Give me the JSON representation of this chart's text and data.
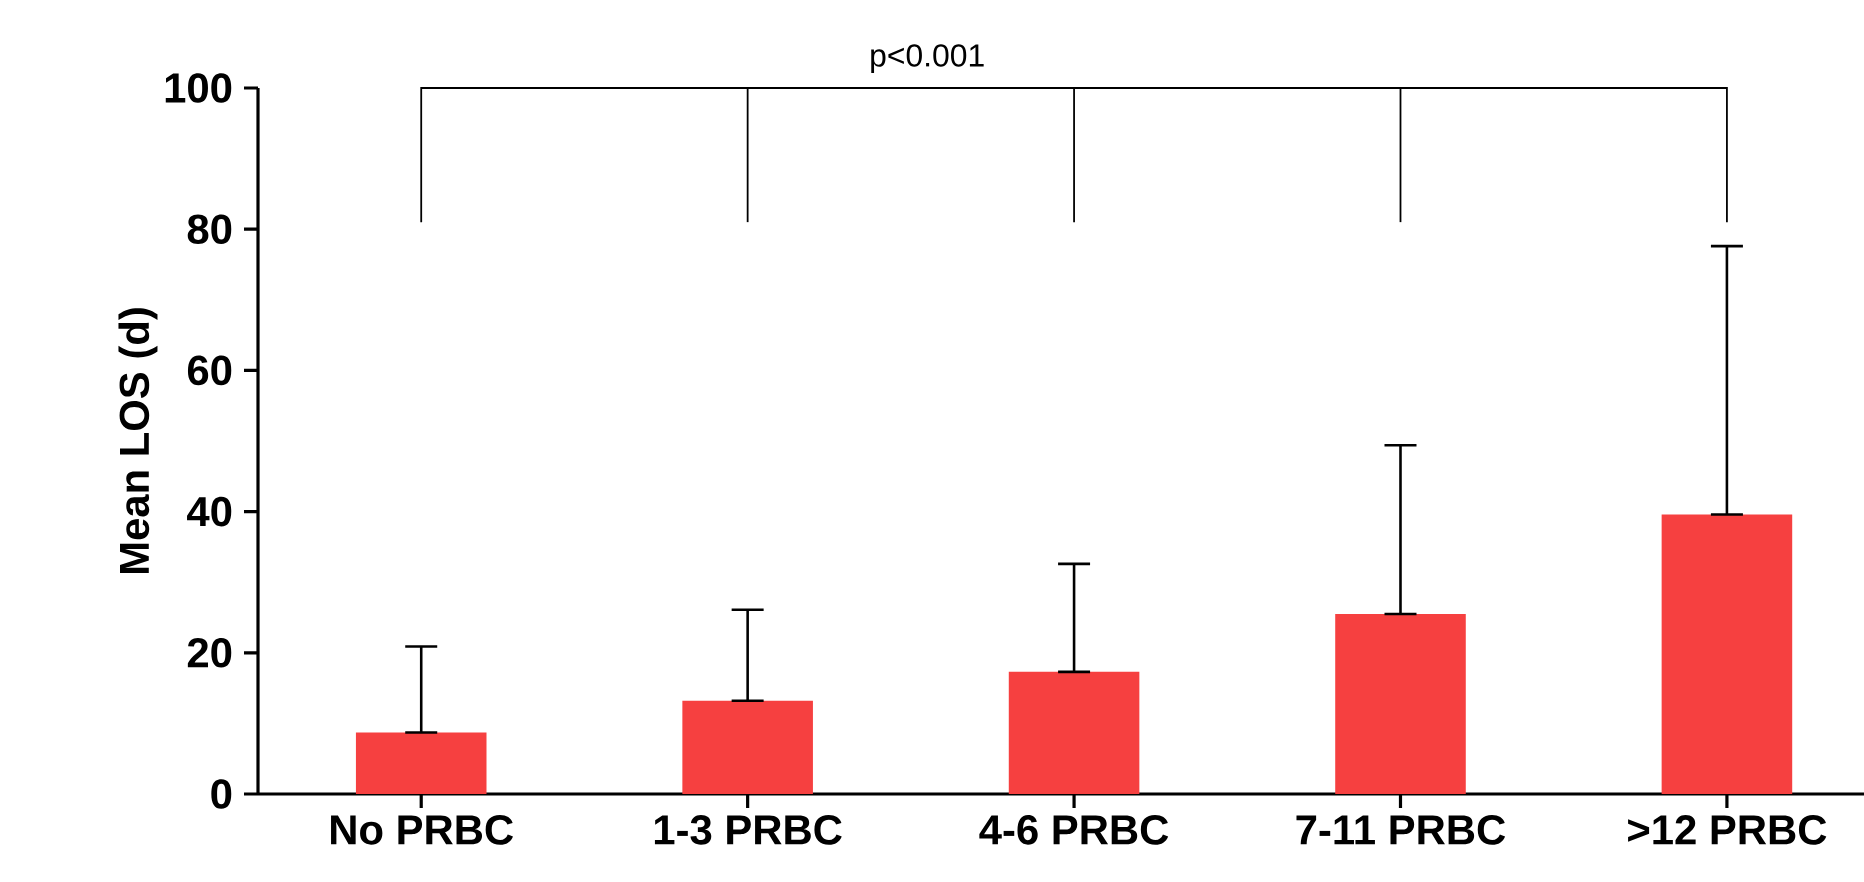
{
  "chart_data": {
    "type": "bar",
    "ylabel": "Mean LOS (d)",
    "categories": [
      "No PRBC",
      "1-3 PRBC",
      "4-6 PRBC",
      "7-11 PRBC",
      ">12 PRBC"
    ],
    "values": [
      8.7,
      13.2,
      17.3,
      25.5,
      39.6
    ],
    "errors": [
      [
        8.7,
        20.9
      ],
      [
        13.2,
        26.1
      ],
      [
        17.3,
        32.6
      ],
      [
        25.5,
        49.4
      ],
      [
        39.6,
        77.6
      ]
    ],
    "color": "#f64040",
    "ylim": [
      0,
      100
    ],
    "yticks": [
      0,
      20,
      40,
      60,
      80,
      100
    ],
    "annotations": [
      "p<0.001"
    ]
  }
}
